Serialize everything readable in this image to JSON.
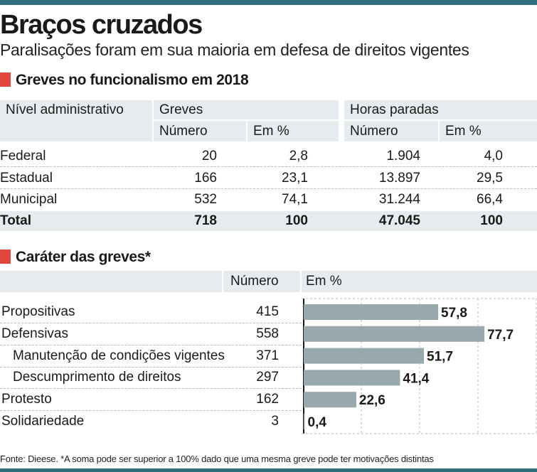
{
  "header": {
    "title": "Braços cruzados",
    "subtitle": "Paralisações foram em sua maioria em defesa de direitos vigentes"
  },
  "colors": {
    "accent_rule": "#2f6f7e",
    "section_marker": "#e0473a",
    "header_band": "#e6ebee",
    "bar_fill": "#98a9ae"
  },
  "table1": {
    "title": "Greves no funcionalismo em 2018",
    "col_level": "Nível administrativo",
    "group_greves": "Greves",
    "group_horas": "Horas paradas",
    "sub_numero": "Número",
    "sub_pct": "Em %",
    "rows": [
      {
        "label": "Federal",
        "greves_num": "20",
        "greves_pct": "2,8",
        "horas_num": "1.904",
        "horas_pct": "4,0"
      },
      {
        "label": "Estadual",
        "greves_num": "166",
        "greves_pct": "23,1",
        "horas_num": "13.897",
        "horas_pct": "29,5"
      },
      {
        "label": "Municipal",
        "greves_num": "532",
        "greves_pct": "74,1",
        "horas_num": "31.244",
        "horas_pct": "66,4"
      }
    ],
    "total": {
      "label": "Total",
      "greves_num": "718",
      "greves_pct": "100",
      "horas_num": "47.045",
      "horas_pct": "100"
    }
  },
  "table2": {
    "title": "Caráter das greves*",
    "col_numero": "Número",
    "col_pct": "Em %"
  },
  "chart_data": {
    "type": "bar",
    "orientation": "horizontal",
    "categories": [
      "Propositivas",
      "Defensivas",
      "Manutenção de condições vigentes",
      "Descumprimento de direitos",
      "Protesto",
      "Solidariedade"
    ],
    "indent": [
      false,
      false,
      true,
      true,
      false,
      false
    ],
    "numero": [
      "415",
      "558",
      "371",
      "297",
      "162",
      "3"
    ],
    "values": [
      57.8,
      77.7,
      51.7,
      41.4,
      22.6,
      0.4
    ],
    "value_labels": [
      "57,8",
      "77,7",
      "51,7",
      "41,4",
      "22,6",
      "0,4"
    ],
    "xlim": [
      0,
      100
    ],
    "grid": true
  },
  "footnote": "Fonte: Dieese. *A soma pode ser superior a 100% dado que uma mesma greve pode ter motivações distintas"
}
